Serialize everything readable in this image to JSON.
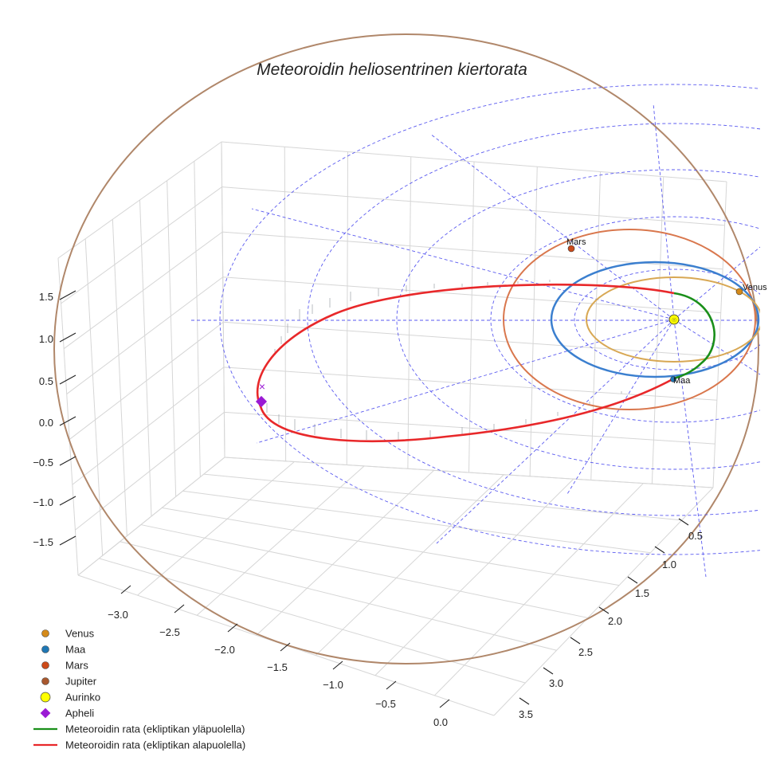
{
  "chart_data": {
    "type": "3d-line",
    "title": "Meteoroidin heliosentrinen kiertorata",
    "xlabel": "",
    "ylabel": "",
    "zlabel": "",
    "x_ticks": [
      "−3.0",
      "−2.5",
      "−2.0",
      "−1.5",
      "−1.0",
      "−0.5",
      "0.0"
    ],
    "y_ticks": [
      "0.5",
      "1.0",
      "1.5",
      "2.0",
      "2.5",
      "3.0",
      "3.5"
    ],
    "z_ticks": [
      "1.5",
      "1.0",
      "0.5",
      "0.0",
      "−0.5",
      "−1.0",
      "−1.5"
    ],
    "planet_orbits_au": [
      {
        "name": "Venus",
        "radius": 0.72,
        "color": "#d4a04a"
      },
      {
        "name": "Maa",
        "radius": 1.0,
        "color": "#1f77c8"
      },
      {
        "name": "Mars",
        "radius": 1.52,
        "color": "#d45a2a"
      },
      {
        "name": "Jupiter",
        "radius": 5.2,
        "color": "#a86c3e"
      }
    ],
    "planet_labels": {
      "venus": "Venus",
      "maa": "Maa",
      "mars": "Mars"
    },
    "meteoroid_orbit": {
      "perihelion_au": 0.85,
      "aphelion_au": 3.35,
      "above_ecliptic_color": "#1a8f1a",
      "below_ecliptic_color": "#e8282a"
    },
    "legend": [
      {
        "label": "Venus",
        "marker": "circle",
        "color": "#d48a1a"
      },
      {
        "label": "Maa",
        "marker": "circle",
        "color": "#1f77b4"
      },
      {
        "label": "Mars",
        "marker": "circle",
        "color": "#cc4a1a"
      },
      {
        "label": "Jupiter",
        "marker": "circle",
        "color": "#a8582e"
      },
      {
        "label": "Aurinko",
        "marker": "circle-large",
        "color": "#ffff00"
      },
      {
        "label": "Apheli",
        "marker": "diamond",
        "color": "#9a1ad4"
      },
      {
        "label": "Meteoroidin rata (ekliptikan yläpuolella)",
        "marker": "line",
        "color": "#1a8f1a"
      },
      {
        "label": "Meteoroidin rata (ekliptikan alapuolella)",
        "marker": "line",
        "color": "#e8282a"
      }
    ]
  }
}
